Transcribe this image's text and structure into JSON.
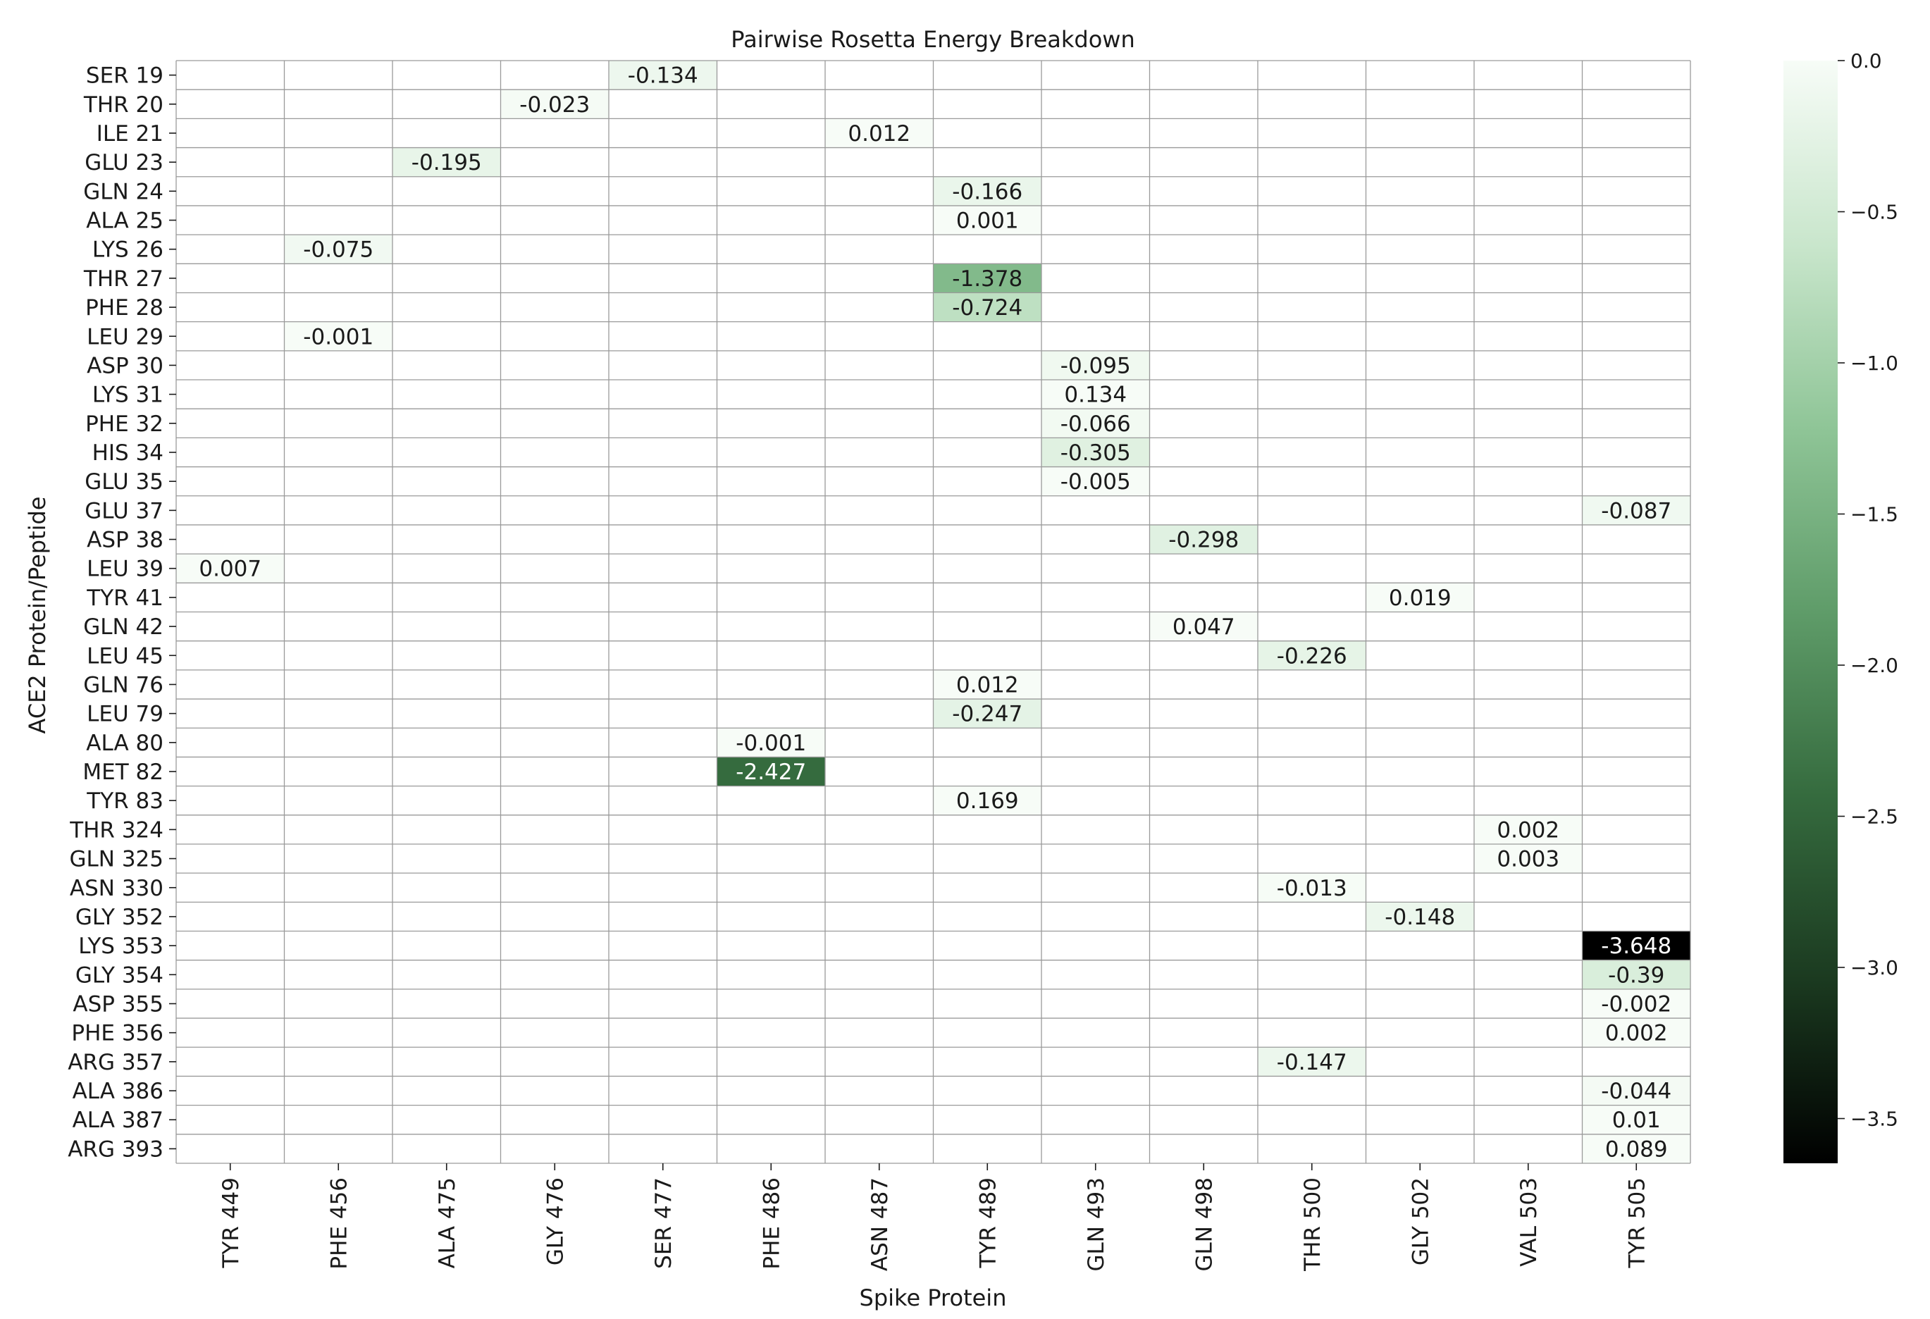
{
  "chart_data": {
    "type": "heatmap",
    "title": "Pairwise Rosetta Energy Breakdown",
    "xlabel": "Spike Protein",
    "ylabel": "ACE2 Protein/Peptide",
    "x_categories": [
      "TYR 449",
      "PHE 456",
      "ALA 475",
      "GLY 476",
      "SER 477",
      "PHE 486",
      "ASN 487",
      "TYR 489",
      "GLN 493",
      "GLN 498",
      "THR 500",
      "GLY 502",
      "VAL 503",
      "TYR 505"
    ],
    "y_categories": [
      "SER 19",
      "THR 20",
      "ILE 21",
      "GLU 23",
      "GLN 24",
      "ALA 25",
      "LYS 26",
      "THR 27",
      "PHE 28",
      "LEU 29",
      "ASP 30",
      "LYS 31",
      "PHE 32",
      "HIS 34",
      "GLU 35",
      "GLU 37",
      "ASP 38",
      "LEU 39",
      "TYR 41",
      "GLN 42",
      "LEU 45",
      "GLN 76",
      "LEU 79",
      "ALA 80",
      "MET 82",
      "TYR 83",
      "THR 324",
      "GLN 325",
      "ASN 330",
      "GLY 352",
      "LYS 353",
      "GLY 354",
      "ASP 355",
      "PHE 356",
      "ARG 357",
      "ALA 386",
      "ALA 387",
      "ARG 393"
    ],
    "cells": [
      {
        "row": "SER 19",
        "col": "SER 477",
        "value": -0.134
      },
      {
        "row": "THR 20",
        "col": "GLY 476",
        "value": -0.023
      },
      {
        "row": "ILE 21",
        "col": "ASN 487",
        "value": 0.012
      },
      {
        "row": "GLU 23",
        "col": "ALA 475",
        "value": -0.195
      },
      {
        "row": "GLN 24",
        "col": "TYR 489",
        "value": -0.166
      },
      {
        "row": "ALA 25",
        "col": "TYR 489",
        "value": 0.001
      },
      {
        "row": "LYS 26",
        "col": "PHE 456",
        "value": -0.075
      },
      {
        "row": "THR 27",
        "col": "TYR 489",
        "value": -1.378
      },
      {
        "row": "PHE 28",
        "col": "TYR 489",
        "value": -0.724
      },
      {
        "row": "LEU 29",
        "col": "PHE 456",
        "value": -0.001
      },
      {
        "row": "ASP 30",
        "col": "GLN 493",
        "value": -0.095
      },
      {
        "row": "LYS 31",
        "col": "GLN 493",
        "value": 0.134
      },
      {
        "row": "PHE 32",
        "col": "GLN 493",
        "value": -0.066
      },
      {
        "row": "HIS 34",
        "col": "GLN 493",
        "value": -0.305
      },
      {
        "row": "GLU 35",
        "col": "GLN 493",
        "value": -0.005
      },
      {
        "row": "GLU 37",
        "col": "TYR 505",
        "value": -0.087
      },
      {
        "row": "ASP 38",
        "col": "GLN 498",
        "value": -0.298
      },
      {
        "row": "LEU 39",
        "col": "TYR 449",
        "value": 0.007
      },
      {
        "row": "TYR 41",
        "col": "GLY 502",
        "value": 0.019
      },
      {
        "row": "GLN 42",
        "col": "GLN 498",
        "value": 0.047
      },
      {
        "row": "LEU 45",
        "col": "THR 500",
        "value": -0.226
      },
      {
        "row": "GLN 76",
        "col": "TYR 489",
        "value": 0.012
      },
      {
        "row": "LEU 79",
        "col": "TYR 489",
        "value": -0.247
      },
      {
        "row": "ALA 80",
        "col": "PHE 486",
        "value": -0.001
      },
      {
        "row": "MET 82",
        "col": "PHE 486",
        "value": -2.427
      },
      {
        "row": "TYR 83",
        "col": "TYR 489",
        "value": 0.169
      },
      {
        "row": "THR 324",
        "col": "VAL 503",
        "value": 0.002
      },
      {
        "row": "GLN 325",
        "col": "VAL 503",
        "value": 0.003
      },
      {
        "row": "ASN 330",
        "col": "THR 500",
        "value": -0.013
      },
      {
        "row": "GLY 352",
        "col": "GLY 502",
        "value": -0.148
      },
      {
        "row": "LYS 353",
        "col": "TYR 505",
        "value": -3.648
      },
      {
        "row": "GLY 354",
        "col": "TYR 505",
        "value": -0.39
      },
      {
        "row": "ASP 355",
        "col": "TYR 505",
        "value": -0.002
      },
      {
        "row": "PHE 356",
        "col": "TYR 505",
        "value": 0.002
      },
      {
        "row": "ARG 357",
        "col": "THR 500",
        "value": -0.147
      },
      {
        "row": "ALA 386",
        "col": "TYR 505",
        "value": -0.044
      },
      {
        "row": "ALA 387",
        "col": "TYR 505",
        "value": 0.01
      },
      {
        "row": "ARG 393",
        "col": "TYR 505",
        "value": 0.089
      }
    ],
    "colorbar": {
      "range": [
        -3.648,
        0.0
      ],
      "ticks": [
        0.0,
        -0.5,
        -1.0,
        -1.5,
        -2.0,
        -2.5,
        -3.0,
        -3.5
      ],
      "tick_labels": [
        "0.0",
        "−0.5",
        "−1.0",
        "−1.5",
        "−2.0",
        "−2.5",
        "−3.0",
        "−3.5"
      ],
      "colors_high_to_low": [
        "#f7fcf7",
        "#c9e6cc",
        "#8fc597",
        "#5f9c69",
        "#356b3e",
        "#1b3a20",
        "#000000"
      ]
    },
    "grid": true
  }
}
